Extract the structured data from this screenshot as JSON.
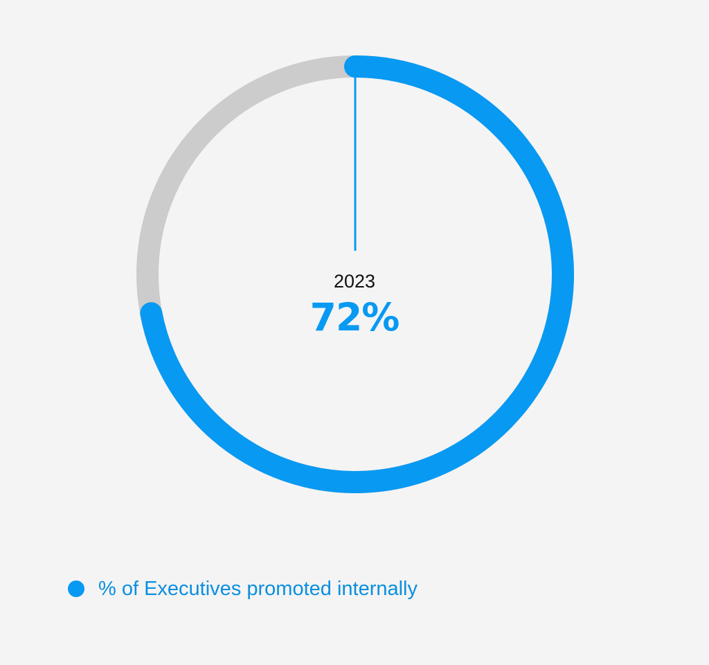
{
  "chart_data": {
    "type": "pie",
    "style": "donut",
    "categories": [
      "% of Executives promoted internally"
    ],
    "values": [
      72
    ],
    "max": 100,
    "center_label": "2023",
    "center_value": "72%",
    "legend": {
      "placement": "bottom-left",
      "entries": [
        "% of Executives promoted internally"
      ]
    }
  },
  "colors": {
    "accent": "#0899f2",
    "track": "#cccccc",
    "legend_text": "#0a8fe0",
    "background": "#f4f4f4"
  }
}
